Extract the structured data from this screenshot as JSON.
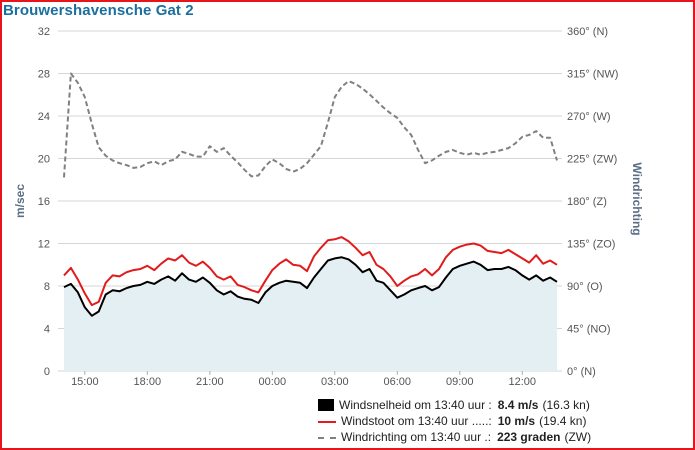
{
  "title": "Brouwershavensche Gat 2",
  "colors": {
    "frame": "#e8141c",
    "title": "#1b6f9e",
    "speed": "#000000",
    "gust": "#e11b1b",
    "direction": "#808080",
    "area": "#e3eff3"
  },
  "legend": [
    {
      "symbol": "box",
      "label": "Windsnelheid om 13:40 uur :",
      "value": "8.4 m/s",
      "extra": "(16.3 kn)"
    },
    {
      "symbol": "line",
      "label": "Windstoot om 13:40 uur .....:",
      "value": "10 m/s",
      "extra": "(19.4 kn)"
    },
    {
      "symbol": "dash",
      "label": "Windrichting om 13:40 uur .:",
      "value": "223 graden",
      "extra": "(ZW)"
    }
  ],
  "chart_data": {
    "type": "line",
    "ylabel": "m/sec",
    "y2label": "Windrichting",
    "ylim": [
      0,
      32
    ],
    "yticks": [
      "0",
      "4",
      "8",
      "12",
      "16",
      "20",
      "24",
      "28",
      "32"
    ],
    "y2lim": [
      0,
      360
    ],
    "y2ticks": [
      "0° (N)",
      "45° (NO)",
      "90° (O)",
      "135° (ZO)",
      "180° (Z)",
      "225° (ZW)",
      "270° (W)",
      "315° (NW)",
      "360° (N)"
    ],
    "xticks": [
      "15:00",
      "18:00",
      "21:00",
      "00:00",
      "03:00",
      "06:00",
      "09:00",
      "12:00"
    ],
    "grid": true,
    "legend_position": "bottom-right",
    "x": [
      "14:00",
      "14:20",
      "14:40",
      "15:00",
      "15:20",
      "15:40",
      "16:00",
      "16:20",
      "16:40",
      "17:00",
      "17:20",
      "17:40",
      "18:00",
      "18:20",
      "18:40",
      "19:00",
      "19:20",
      "19:40",
      "20:00",
      "20:20",
      "20:40",
      "21:00",
      "21:20",
      "21:40",
      "22:00",
      "22:20",
      "22:40",
      "23:00",
      "23:20",
      "23:40",
      "00:00",
      "00:20",
      "00:40",
      "01:00",
      "01:20",
      "01:40",
      "02:00",
      "02:20",
      "02:40",
      "03:00",
      "03:20",
      "03:40",
      "04:00",
      "04:20",
      "04:40",
      "05:00",
      "05:20",
      "05:40",
      "06:00",
      "06:20",
      "06:40",
      "07:00",
      "07:20",
      "07:40",
      "08:00",
      "08:20",
      "08:40",
      "09:00",
      "09:20",
      "09:40",
      "10:00",
      "10:20",
      "10:40",
      "11:00",
      "11:20",
      "11:40",
      "12:00",
      "12:20",
      "12:40",
      "13:00",
      "13:20",
      "13:40"
    ],
    "series": [
      {
        "name": "Windsnelheid",
        "axis": "left",
        "values": [
          7.9,
          8.2,
          7.4,
          6.0,
          5.2,
          5.6,
          7.2,
          7.6,
          7.5,
          7.8,
          8.0,
          8.1,
          8.4,
          8.2,
          8.6,
          8.9,
          8.5,
          9.2,
          8.6,
          8.4,
          8.8,
          8.3,
          7.6,
          7.2,
          7.5,
          7.0,
          6.8,
          6.7,
          6.4,
          7.4,
          8.0,
          8.3,
          8.5,
          8.4,
          8.3,
          7.8,
          8.8,
          9.6,
          10.4,
          10.6,
          10.7,
          10.5,
          10.0,
          9.3,
          9.6,
          8.5,
          8.3,
          7.6,
          6.9,
          7.2,
          7.6,
          7.8,
          8.0,
          7.6,
          7.9,
          8.8,
          9.6,
          9.9,
          10.1,
          10.3,
          10.0,
          9.5,
          9.6,
          9.6,
          9.8,
          9.5,
          9.0,
          8.6,
          9.0,
          8.5,
          8.8,
          8.4
        ]
      },
      {
        "name": "Windstoot",
        "axis": "left",
        "values": [
          9.0,
          9.7,
          8.6,
          7.3,
          6.2,
          6.5,
          8.3,
          9.0,
          8.9,
          9.3,
          9.5,
          9.6,
          9.9,
          9.5,
          10.1,
          10.6,
          10.4,
          10.9,
          10.2,
          9.9,
          10.3,
          9.7,
          8.9,
          8.6,
          8.9,
          8.1,
          7.9,
          7.6,
          7.4,
          8.5,
          9.5,
          10.1,
          10.5,
          10.0,
          9.9,
          9.4,
          10.8,
          11.6,
          12.3,
          12.4,
          12.6,
          12.2,
          11.6,
          10.9,
          11.2,
          10.0,
          9.6,
          8.9,
          8.0,
          8.5,
          8.9,
          9.1,
          9.6,
          9.0,
          9.6,
          10.7,
          11.4,
          11.7,
          11.9,
          12.0,
          11.8,
          11.3,
          11.2,
          11.1,
          11.4,
          11.0,
          10.6,
          10.2,
          10.9,
          10.1,
          10.4,
          10.0
        ]
      },
      {
        "name": "Windrichting",
        "axis": "right",
        "values": [
          205,
          315,
          305,
          290,
          262,
          237,
          228,
          223,
          220,
          218,
          215,
          216,
          220,
          222,
          218,
          222,
          224,
          232,
          230,
          227,
          227,
          238,
          232,
          236,
          228,
          221,
          213,
          206,
          207,
          217,
          224,
          220,
          214,
          211,
          214,
          220,
          229,
          238,
          263,
          290,
          301,
          307,
          304,
          299,
          293,
          286,
          279,
          273,
          268,
          258,
          250,
          234,
          220,
          223,
          228,
          232,
          234,
          231,
          229,
          231,
          229,
          231,
          232,
          234,
          236,
          241,
          248,
          250,
          254,
          247,
          247,
          223
        ]
      }
    ]
  }
}
